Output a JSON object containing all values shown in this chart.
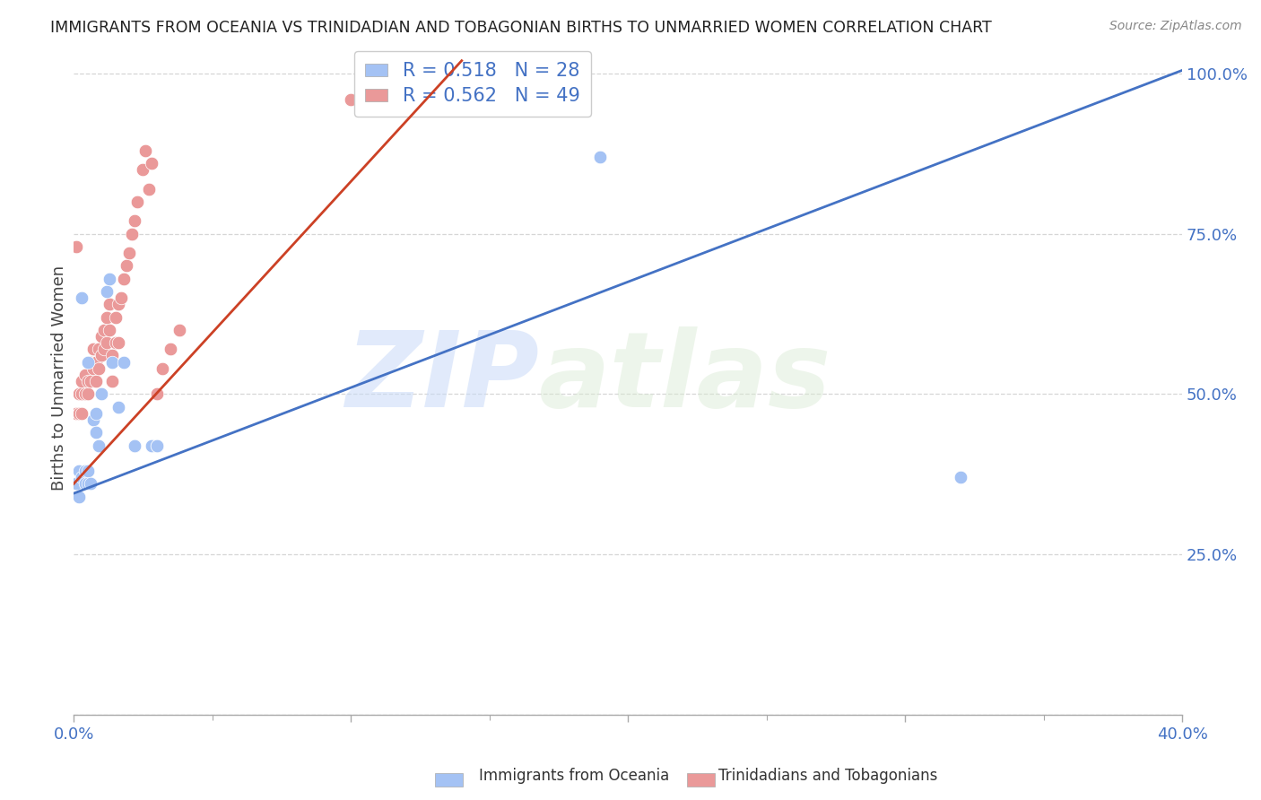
{
  "title": "IMMIGRANTS FROM OCEANIA VS TRINIDADIAN AND TOBAGONIAN BIRTHS TO UNMARRIED WOMEN CORRELATION CHART",
  "source": "Source: ZipAtlas.com",
  "ylabel": "Births to Unmarried Women",
  "blue_R": "0.518",
  "blue_N": "28",
  "pink_R": "0.562",
  "pink_N": "49",
  "legend_label_blue": "Immigrants from Oceania",
  "legend_label_pink": "Trinidadians and Tobagonians",
  "blue_color": "#a4c2f4",
  "pink_color": "#ea9999",
  "blue_line_color": "#4472c4",
  "pink_line_color": "#cc4125",
  "watermark_zip": "ZIP",
  "watermark_atlas": "atlas",
  "xlim": [
    0.0,
    0.4
  ],
  "ylim": [
    0.0,
    1.05
  ],
  "blue_scatter_x": [
    0.001,
    0.002,
    0.002,
    0.003,
    0.004,
    0.004,
    0.005,
    0.005,
    0.006,
    0.007,
    0.008,
    0.009,
    0.01,
    0.012,
    0.013,
    0.014,
    0.016,
    0.018,
    0.022,
    0.022,
    0.028,
    0.03,
    0.03,
    0.003,
    0.005,
    0.008,
    0.19,
    0.32
  ],
  "blue_scatter_y": [
    0.36,
    0.34,
    0.38,
    0.37,
    0.36,
    0.38,
    0.36,
    0.38,
    0.36,
    0.46,
    0.44,
    0.42,
    0.5,
    0.66,
    0.68,
    0.55,
    0.48,
    0.55,
    0.42,
    0.42,
    0.42,
    0.42,
    0.42,
    0.65,
    0.55,
    0.47,
    0.87,
    0.37
  ],
  "pink_scatter_x": [
    0.001,
    0.001,
    0.002,
    0.002,
    0.003,
    0.003,
    0.003,
    0.004,
    0.004,
    0.005,
    0.005,
    0.006,
    0.006,
    0.007,
    0.007,
    0.008,
    0.008,
    0.009,
    0.009,
    0.01,
    0.01,
    0.011,
    0.011,
    0.012,
    0.012,
    0.013,
    0.013,
    0.014,
    0.014,
    0.015,
    0.015,
    0.016,
    0.016,
    0.017,
    0.018,
    0.019,
    0.02,
    0.021,
    0.022,
    0.023,
    0.025,
    0.026,
    0.027,
    0.028,
    0.03,
    0.032,
    0.035,
    0.038,
    0.1
  ],
  "pink_scatter_y": [
    0.47,
    0.73,
    0.47,
    0.5,
    0.47,
    0.5,
    0.52,
    0.5,
    0.53,
    0.5,
    0.52,
    0.52,
    0.55,
    0.54,
    0.57,
    0.52,
    0.55,
    0.54,
    0.57,
    0.56,
    0.59,
    0.57,
    0.6,
    0.58,
    0.62,
    0.6,
    0.64,
    0.52,
    0.56,
    0.58,
    0.62,
    0.58,
    0.64,
    0.65,
    0.68,
    0.7,
    0.72,
    0.75,
    0.77,
    0.8,
    0.85,
    0.88,
    0.82,
    0.86,
    0.5,
    0.54,
    0.57,
    0.6,
    0.96
  ]
}
